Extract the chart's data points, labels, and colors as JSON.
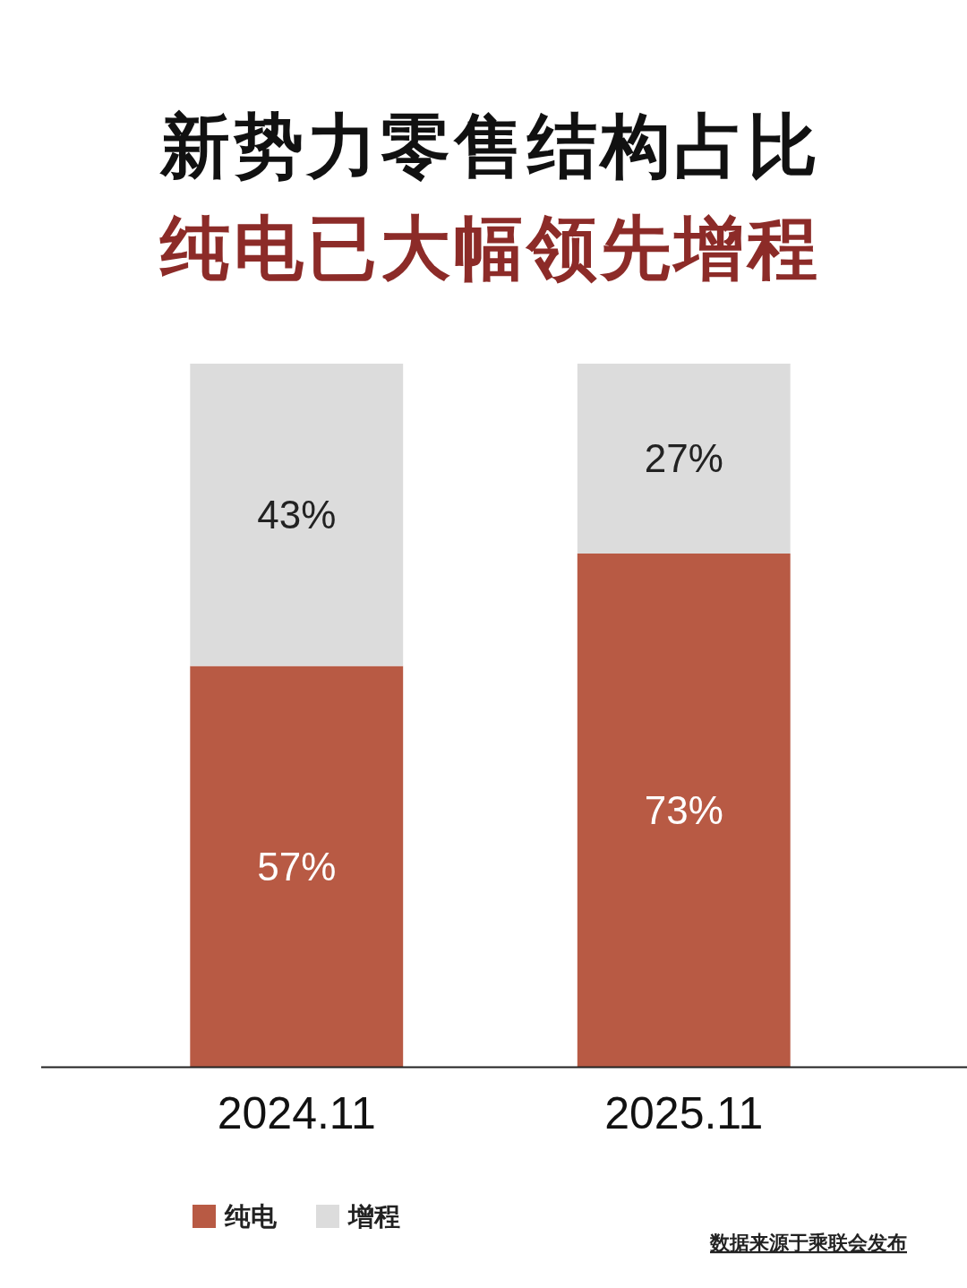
{
  "chart_data": {
    "type": "bar",
    "title": "新势力零售结构占比",
    "subtitle": "纯电已大幅领先增程",
    "categories": [
      "2024.11",
      "2025.11"
    ],
    "stacked": true,
    "legend": "bottom",
    "series": [
      {
        "name": "纯电",
        "color": "#b85a44",
        "values": [
          57,
          73
        ],
        "value_labels": [
          "57%",
          "73%"
        ]
      },
      {
        "name": "增程",
        "color": "#dcdcdc",
        "values": [
          43,
          27
        ],
        "value_labels": [
          "43%",
          "27%"
        ]
      }
    ],
    "annotations": [
      "数据来源于乘联会发布"
    ]
  }
}
